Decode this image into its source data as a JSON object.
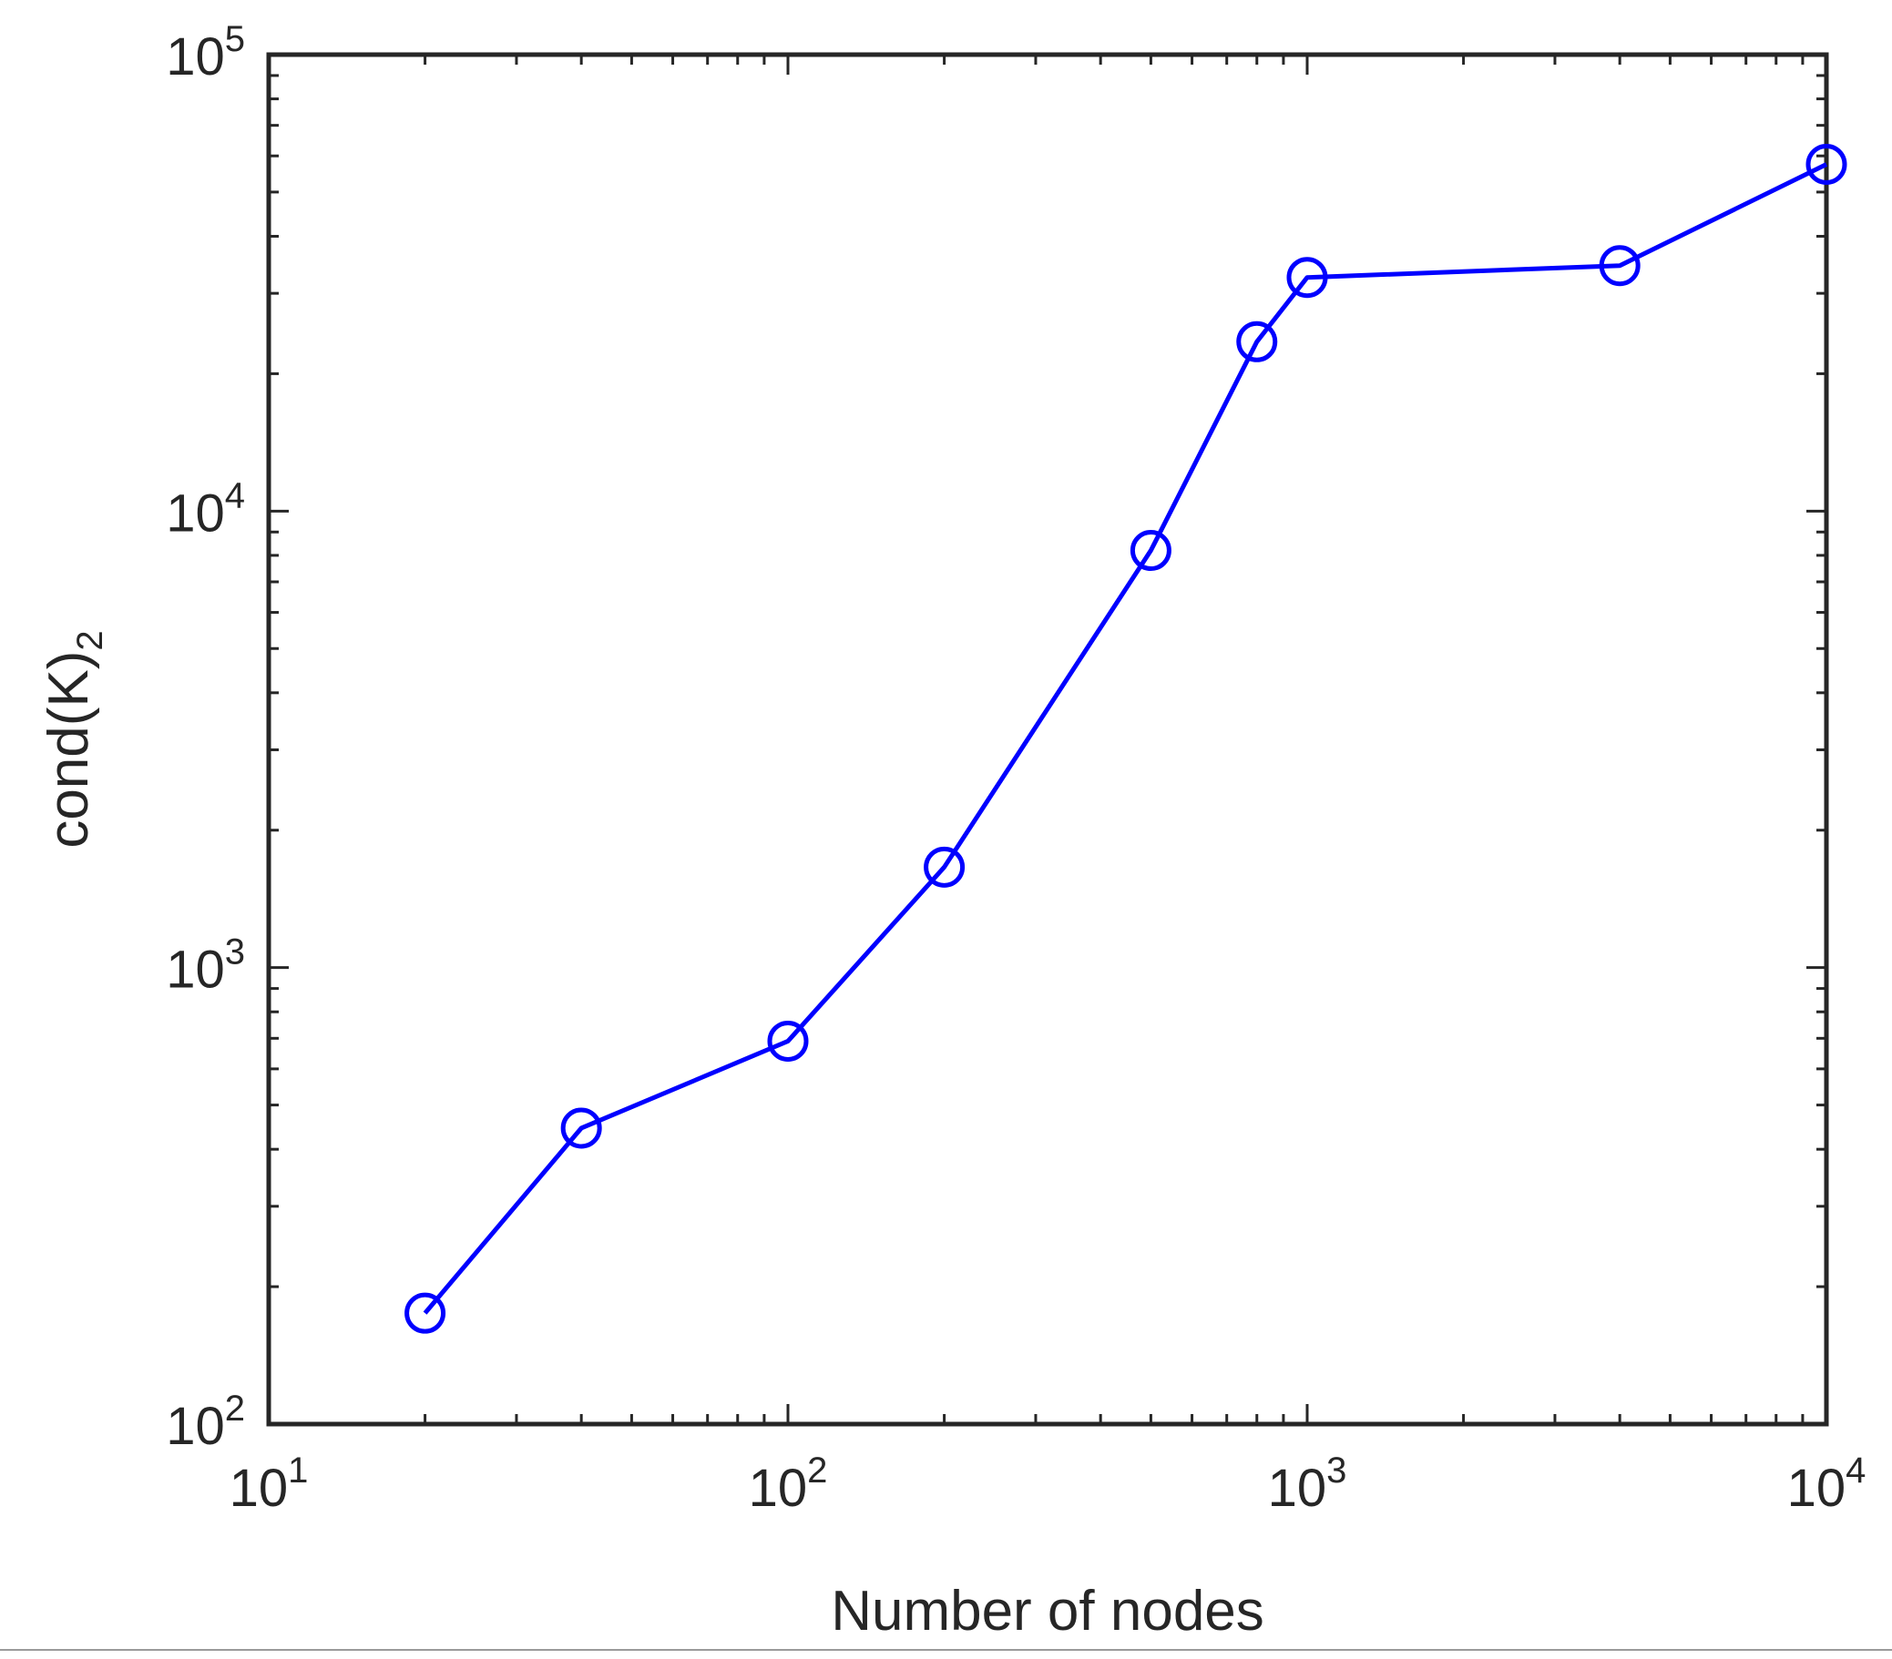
{
  "chart_data": {
    "type": "line",
    "xscale": "log",
    "yscale": "log",
    "xlim": [
      10,
      10000
    ],
    "ylim": [
      100,
      100000
    ],
    "xlabel": "Number of nodes",
    "ylabel": "cond(K)",
    "ylabel_subscript": "2",
    "xticks": [
      {
        "value": 10,
        "base": "10",
        "exp": "1"
      },
      {
        "value": 100,
        "base": "10",
        "exp": "2"
      },
      {
        "value": 1000,
        "base": "10",
        "exp": "3"
      },
      {
        "value": 10000,
        "base": "10",
        "exp": "4"
      }
    ],
    "yticks": [
      {
        "value": 100,
        "base": "10",
        "exp": "2"
      },
      {
        "value": 1000,
        "base": "10",
        "exp": "3"
      },
      {
        "value": 10000,
        "base": "10",
        "exp": "4"
      },
      {
        "value": 100000,
        "base": "10",
        "exp": "5"
      }
    ],
    "grid": false,
    "series": [
      {
        "color": "#0000ff",
        "marker": "circle-open",
        "x": [
          20,
          40,
          100,
          200,
          500,
          800,
          1000,
          4000,
          10000
        ],
        "y": [
          175,
          445,
          690,
          1660,
          8200,
          23500,
          32500,
          34500,
          57500
        ]
      }
    ]
  }
}
